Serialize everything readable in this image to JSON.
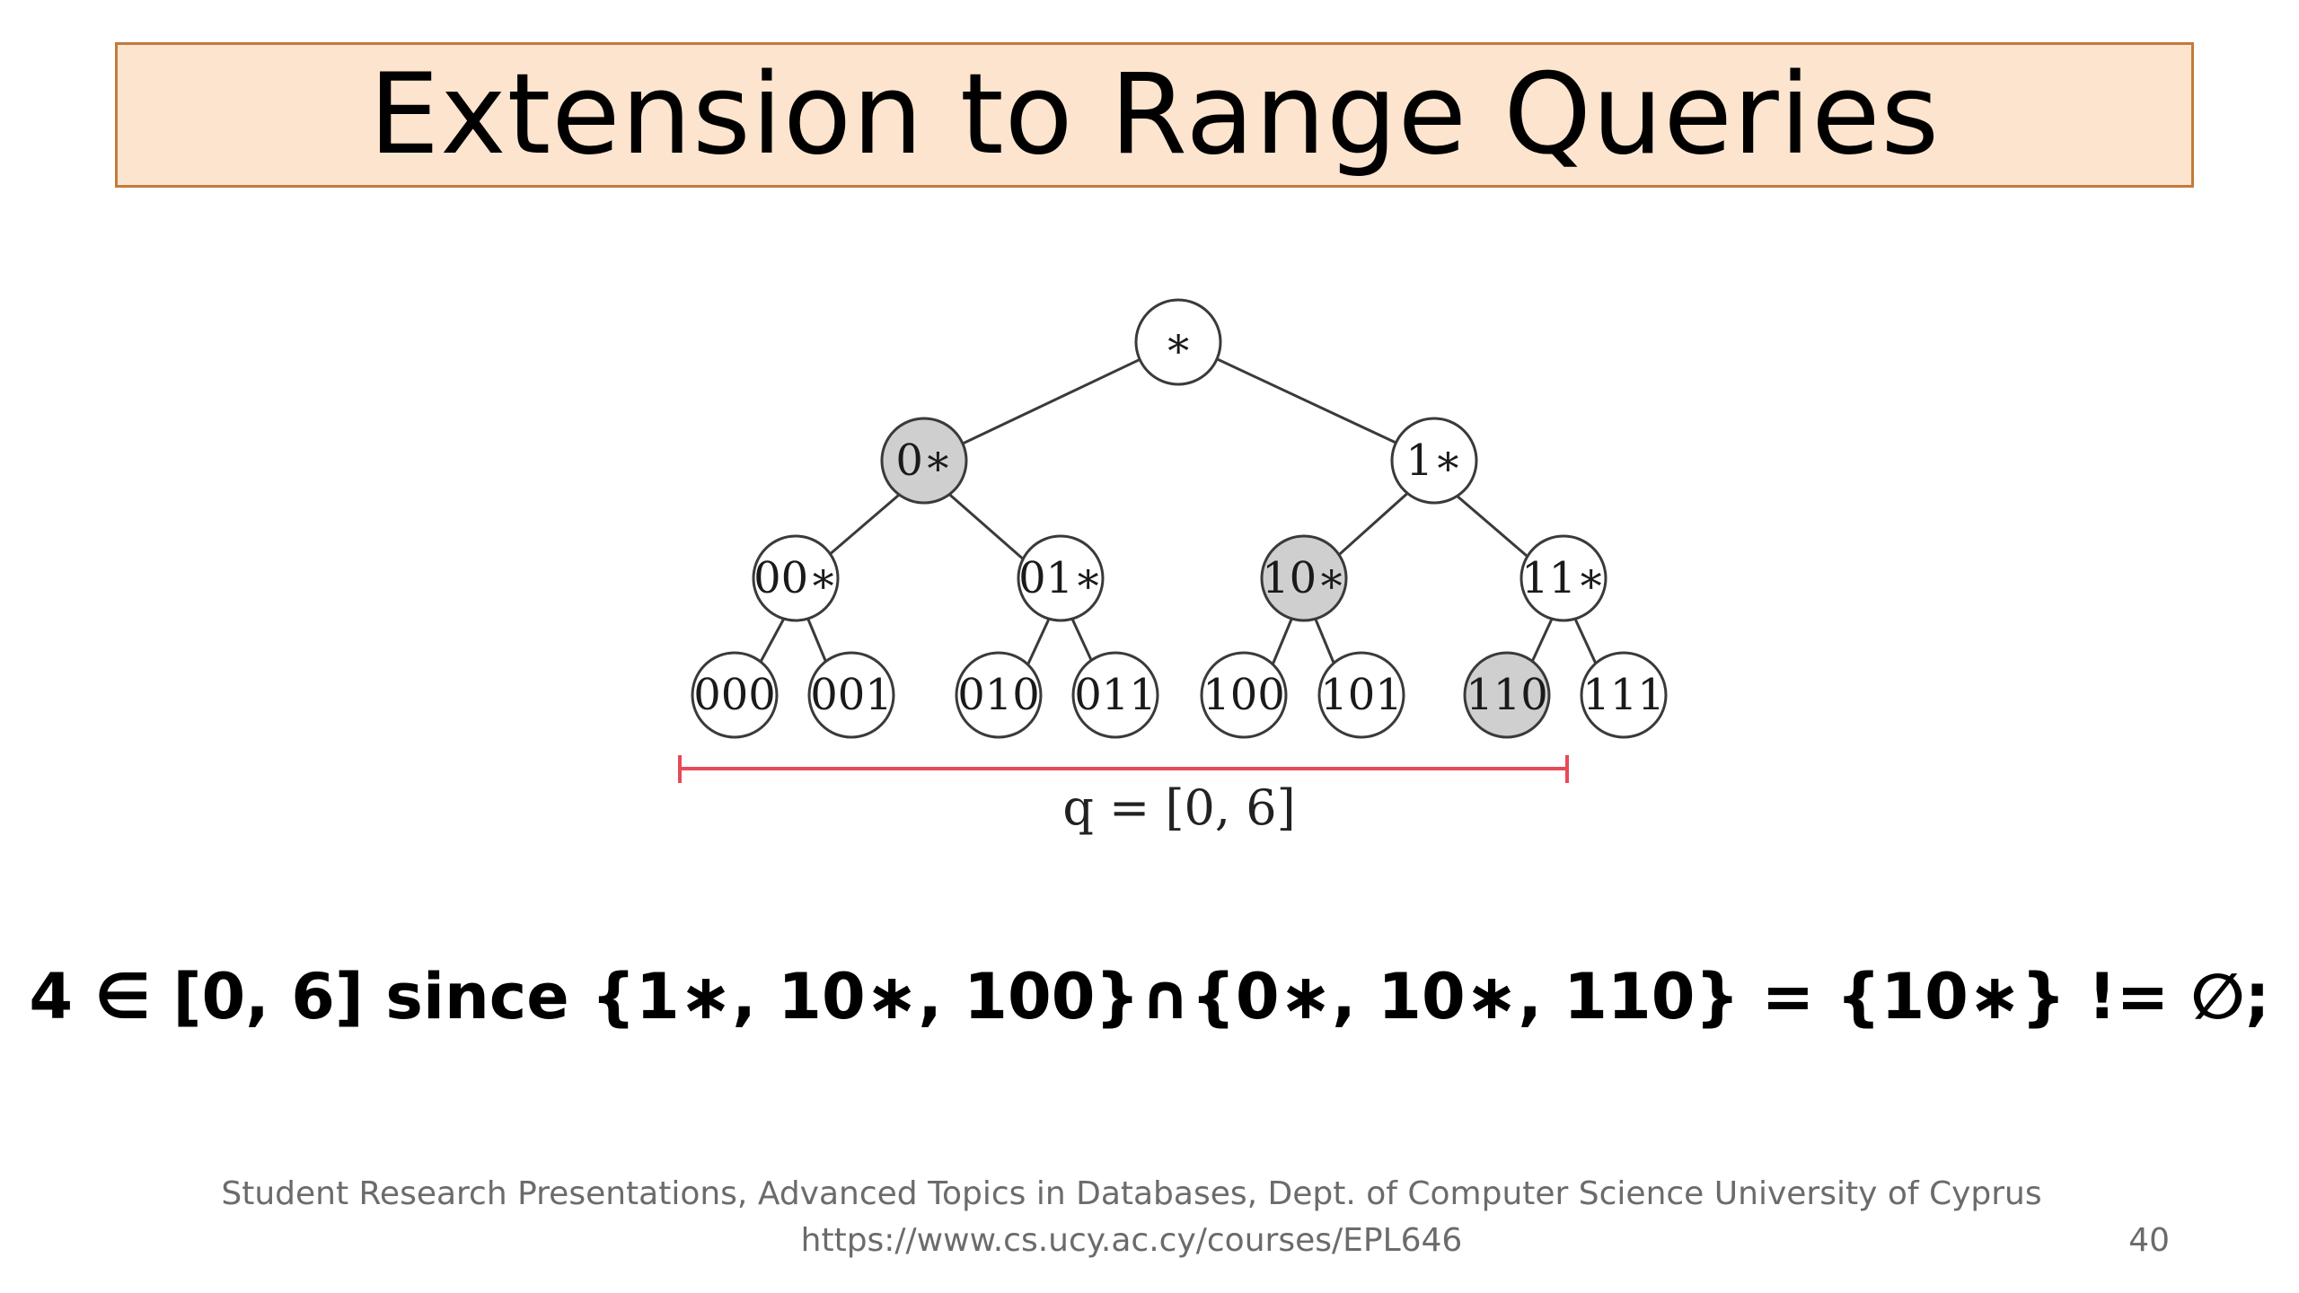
{
  "slide": {
    "title": "Extension to Range Queries",
    "statement": "4 ∈ [0, 6] since {1∗, 10∗, 100}∩{0∗, 10∗, 110} = {10∗} != ∅;",
    "footer_line1": "Student Research Presentations, Advanced Topics in Databases, Dept. of Computer Science University of Cyprus",
    "footer_line2": "https://www.cs.ucy.ac.cy/courses/EPL646",
    "page_number": "40"
  },
  "diagram": {
    "query_label": "q = [0, 6]",
    "colors": {
      "highlight_fill": "#cfcfcf",
      "node_fill": "#ffffff",
      "node_stroke": "#3a3a3a",
      "edge": "#3a3a3a",
      "range_line": "#e8495a"
    },
    "nodes": {
      "root": "∗",
      "n0": "0∗",
      "n1": "1∗",
      "n00": "00∗",
      "n01": "01∗",
      "n10": "10∗",
      "n11": "11∗",
      "l000": "000",
      "l001": "001",
      "l010": "010",
      "l011": "011",
      "l100": "100",
      "l101": "101",
      "l110": "110",
      "l111": "111"
    },
    "highlighted": [
      "n0",
      "n10",
      "l110"
    ]
  }
}
